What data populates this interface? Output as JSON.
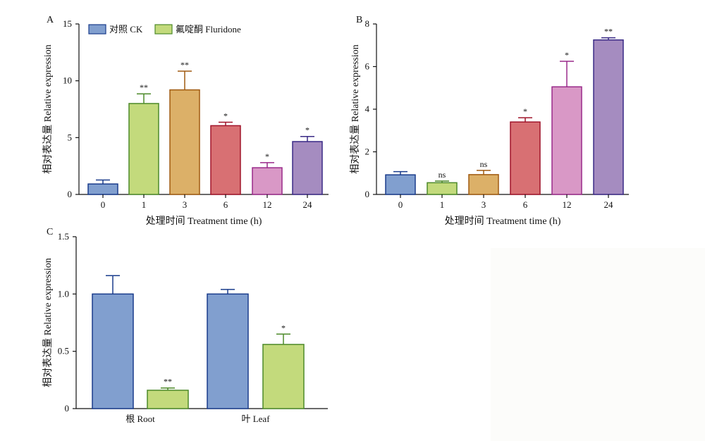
{
  "legend": {
    "ck": "对照 CK",
    "flu": "氟啶酮 Fluridone"
  },
  "colors": {
    "ck_blue": "#819fcf",
    "ck_blue_edge": "#1a3c8c",
    "green": "#c3da7c",
    "green_edge": "#4d8a2a",
    "orange": "#dcb068",
    "orange_edge": "#a05a10",
    "red": "#d87073",
    "red_edge": "#a0142a",
    "pink": "#d998c6",
    "pink_edge": "#9a2a8a",
    "purple": "#a58cc0",
    "purple_edge": "#3a2a86"
  },
  "chart_data": [
    {
      "panel": "A",
      "type": "bar",
      "categories": [
        "0",
        "1",
        "3",
        "6",
        "12",
        "24"
      ],
      "values": [
        0.92,
        8.0,
        9.2,
        6.05,
        2.35,
        4.65
      ],
      "errors": [
        0.35,
        0.85,
        1.65,
        0.3,
        0.45,
        0.45
      ],
      "significance": [
        "",
        "**",
        "**",
        "*",
        "*",
        "*"
      ],
      "ylim": [
        0,
        15
      ],
      "yticks": [
        0,
        5,
        10,
        15
      ],
      "xlabel": "处理时间 Treatment time (h)",
      "ylabel": "相对表达量 Relative expression",
      "fills": [
        "ck_blue",
        "green",
        "orange",
        "red",
        "pink",
        "purple"
      ],
      "edges": [
        "ck_blue_edge",
        "green_edge",
        "orange_edge",
        "red_edge",
        "pink_edge",
        "purple_edge"
      ]
    },
    {
      "panel": "B",
      "type": "bar",
      "categories": [
        "0",
        "1",
        "3",
        "6",
        "12",
        "24"
      ],
      "values": [
        0.92,
        0.55,
        0.93,
        3.4,
        5.05,
        7.25
      ],
      "errors": [
        0.15,
        0.08,
        0.2,
        0.2,
        1.2,
        0.1
      ],
      "significance": [
        "",
        "ns",
        "ns",
        "*",
        "*",
        "**"
      ],
      "ylim": [
        0,
        8
      ],
      "yticks": [
        0,
        2,
        4,
        6,
        8
      ],
      "xlabel": "处理时间 Treatment time (h)",
      "ylabel": "相对表达量 Relative expression",
      "fills": [
        "ck_blue",
        "green",
        "orange",
        "red",
        "pink",
        "purple"
      ],
      "edges": [
        "ck_blue_edge",
        "green_edge",
        "orange_edge",
        "red_edge",
        "pink_edge",
        "purple_edge"
      ]
    },
    {
      "panel": "C",
      "type": "bar",
      "categories": [
        "根 Root",
        "叶 Leaf"
      ],
      "series": [
        {
          "name": "对照 CK",
          "values": [
            1.0,
            1.0
          ],
          "errors": [
            0.16,
            0.04
          ],
          "significance": [
            "",
            ""
          ]
        },
        {
          "name": "氟啶酮 Fluridone",
          "values": [
            0.16,
            0.56
          ],
          "errors": [
            0.02,
            0.09
          ],
          "significance": [
            "**",
            "*"
          ]
        }
      ],
      "ylim": [
        0,
        1.5
      ],
      "yticks": [
        "0",
        "0.5",
        "1.0",
        "1.5"
      ],
      "xlabel": "",
      "ylabel": "相对表达量 Relative expression"
    }
  ]
}
